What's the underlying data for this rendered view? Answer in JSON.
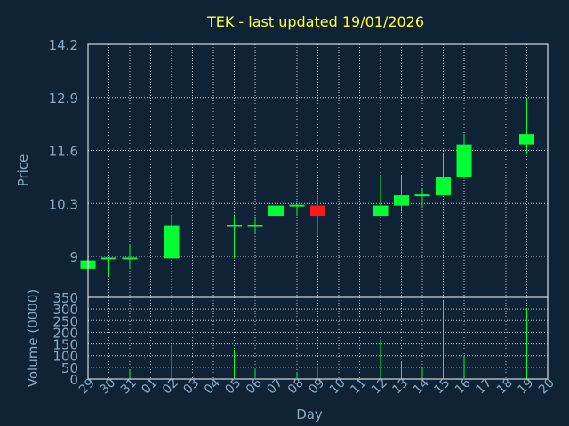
{
  "chart_data": {
    "type": "candlestick",
    "title": "TEK - last updated 19/01/2026",
    "xlabel": "Day",
    "price_panel": {
      "ylabel": "Price",
      "ylim": [
        8.0,
        14.2
      ],
      "yticks": [
        "14.2",
        "12.9",
        "11.6",
        "10.3",
        "9"
      ],
      "grid": true
    },
    "volume_panel": {
      "ylabel": "Volume (0000)",
      "ylim": [
        0,
        350
      ],
      "yticks": [
        "350",
        "300",
        "250",
        "200",
        "150",
        "100",
        "50",
        "0"
      ],
      "grid": true
    },
    "x_tick_labels": [
      "29",
      "30",
      "31",
      "01",
      "02",
      "03",
      "04",
      "05",
      "06",
      "07",
      "08",
      "09",
      "10",
      "11",
      "12",
      "13",
      "14",
      "15",
      "16",
      "17",
      "18",
      "19",
      "20"
    ],
    "candles": [
      {
        "day": "29",
        "open": 8.7,
        "high": 8.9,
        "low": 8.7,
        "close": 8.9,
        "volume": 0
      },
      {
        "day": "30",
        "open": 8.95,
        "high": 8.97,
        "low": 8.5,
        "close": 8.95,
        "volume": 0
      },
      {
        "day": "31",
        "open": 8.95,
        "high": 9.3,
        "low": 8.7,
        "close": 8.95,
        "volume": 40
      },
      {
        "day": "02",
        "open": 8.95,
        "high": 10.0,
        "low": 8.95,
        "close": 9.75,
        "volume": 145
      },
      {
        "day": "05",
        "open": 9.75,
        "high": 10.0,
        "low": 8.95,
        "close": 9.75,
        "volume": 125
      },
      {
        "day": "06",
        "open": 9.75,
        "high": 9.95,
        "low": 9.55,
        "close": 9.75,
        "volume": 45
      },
      {
        "day": "07",
        "open": 10.0,
        "high": 10.6,
        "low": 9.7,
        "close": 10.25,
        "volume": 185
      },
      {
        "day": "08",
        "open": 10.25,
        "high": 10.3,
        "low": 10.0,
        "close": 10.25,
        "volume": 30
      },
      {
        "day": "09",
        "open": 10.25,
        "high": 10.5,
        "low": 9.5,
        "close": 10.0,
        "volume": 55
      },
      {
        "day": "12",
        "open": 10.0,
        "high": 11.0,
        "low": 10.0,
        "close": 10.25,
        "volume": 170
      },
      {
        "day": "13",
        "open": 10.25,
        "high": 11.0,
        "low": 10.1,
        "close": 10.5,
        "volume": 75
      },
      {
        "day": "14",
        "open": 10.5,
        "high": 10.65,
        "low": 10.2,
        "close": 10.5,
        "volume": 50
      },
      {
        "day": "15",
        "open": 10.5,
        "high": 11.55,
        "low": 10.5,
        "close": 10.95,
        "volume": 340
      },
      {
        "day": "16",
        "open": 10.95,
        "high": 12.0,
        "low": 10.9,
        "close": 11.75,
        "volume": 100
      },
      {
        "day": "19",
        "open": 11.75,
        "high": 12.9,
        "low": 11.5,
        "close": 12.0,
        "volume": 305
      }
    ]
  },
  "colors": {
    "background": "#0f2236",
    "title": "#ffff33",
    "axis_text": "#8aa9c4",
    "grid": "#b9c3cc",
    "up": "#00ff33",
    "down": "#ff1a1a"
  }
}
